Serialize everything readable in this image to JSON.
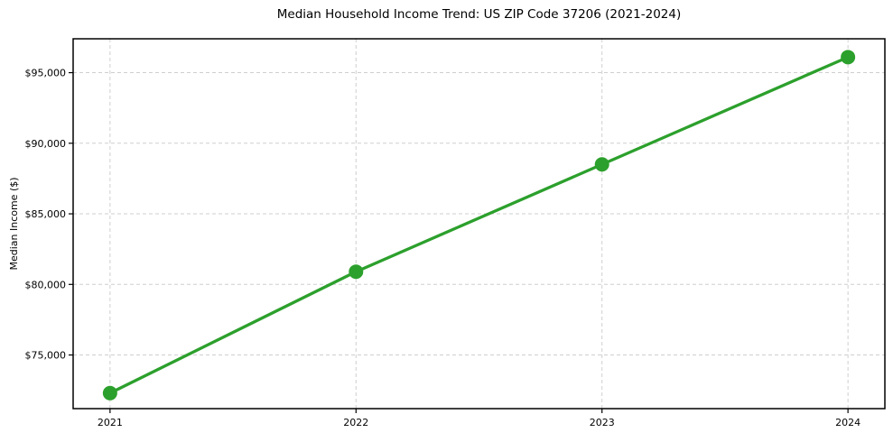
{
  "chart_data": {
    "type": "line",
    "title": "Median Household Income Trend: US ZIP Code 37206 (2021-2024)",
    "xlabel": "",
    "ylabel": "Median Income ($)",
    "x": [
      2021,
      2022,
      2023,
      2024
    ],
    "series": [
      {
        "name": "Median Household Income",
        "values": [
          72300,
          80900,
          88500,
          96100
        ]
      }
    ],
    "x_tick_labels": [
      "2021",
      "2022",
      "2023",
      "2024"
    ],
    "y_ticks": [
      75000,
      80000,
      85000,
      90000,
      95000
    ],
    "y_tick_labels": [
      "$75,000",
      "$80,000",
      "$85,000",
      "$90,000",
      "$95,000"
    ],
    "xlim": [
      2020.85,
      2024.15
    ],
    "ylim": [
      71200,
      97400
    ],
    "grid": true,
    "grid_style": "dashed",
    "legend": "none",
    "colors": {
      "line": "#2ca02c",
      "marker": "#2ca02c",
      "grid": "#cfcfcf",
      "axis": "#000000",
      "text": "#000000",
      "background": "#ffffff"
    }
  }
}
